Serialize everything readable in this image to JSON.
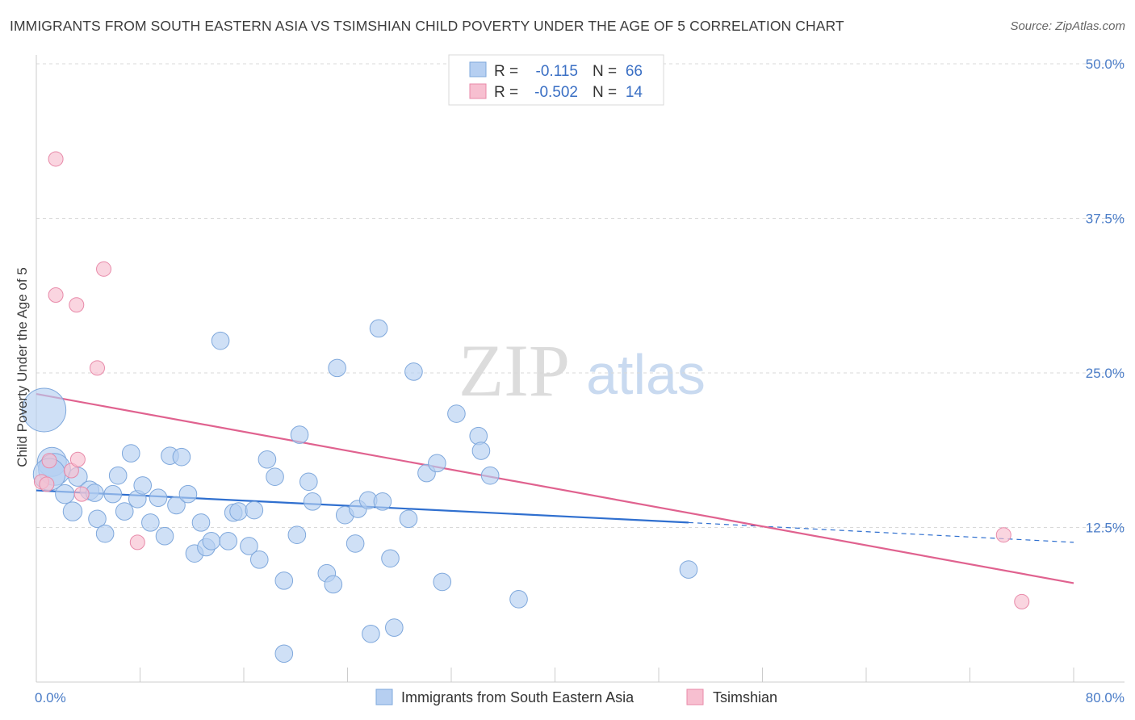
{
  "header": {
    "title": "IMMIGRANTS FROM SOUTH EASTERN ASIA VS TSIMSHIAN CHILD POVERTY UNDER THE AGE OF 5 CORRELATION CHART",
    "source": "Source: ZipAtlas.com"
  },
  "watermark": {
    "zip": "ZIP",
    "atlas": "atlas"
  },
  "colors": {
    "blue_fill": "#b6cff1",
    "blue_stroke": "#7fa8dc",
    "blue_line": "#2f6fcf",
    "pink_fill": "#f7bfd0",
    "pink_stroke": "#e88aa9",
    "pink_line": "#e0628f",
    "tick_text": "#4a7cc7",
    "grid": "#d9d9d9"
  },
  "legend_top": {
    "rows": [
      {
        "r_label": "R =",
        "r_value": "-0.115",
        "n_label": "N =",
        "n_value": "66"
      },
      {
        "r_label": "R =",
        "r_value": "-0.502",
        "n_label": "N =",
        "n_value": "14"
      }
    ]
  },
  "legend_bottom": {
    "items": [
      "Immigrants from South Eastern Asia",
      "Tsimshian"
    ]
  },
  "chart_data": {
    "type": "scatter",
    "title": "IMMIGRANTS FROM SOUTH EASTERN ASIA VS TSIMSHIAN CHILD POVERTY UNDER THE AGE OF 5 CORRELATION CHART",
    "xlabel": "",
    "ylabel": "Child Poverty Under the Age of 5",
    "xlim": [
      0,
      80
    ],
    "ylim": [
      0,
      50
    ],
    "x_tick_labels": [
      {
        "value": 0,
        "label": "0.0%"
      },
      {
        "value": 80,
        "label": "80.0%"
      }
    ],
    "y_ticks": [
      {
        "value": 12.5,
        "label": "12.5%"
      },
      {
        "value": 25,
        "label": "25.0%"
      },
      {
        "value": 37.5,
        "label": "37.5%"
      },
      {
        "value": 50,
        "label": "50.0%"
      }
    ],
    "grid": "horizontal dashed",
    "legend_placement": "top-center",
    "series": [
      {
        "name": "Immigrants from South Eastern Asia",
        "r": -0.115,
        "n": 66,
        "points": [
          [
            0.6,
            22.0,
            3
          ],
          [
            1.2,
            17.8,
            2
          ],
          [
            1.4,
            17.2,
            2.2
          ],
          [
            1.0,
            16.8,
            2.2
          ],
          [
            2.2,
            15.2,
            1.3
          ],
          [
            2.8,
            13.8,
            1.3
          ],
          [
            3.2,
            16.6,
            1.3
          ],
          [
            4.1,
            15.5,
            1.3
          ],
          [
            4.5,
            15.3,
            1.2
          ],
          [
            4.7,
            13.2,
            1.2
          ],
          [
            5.3,
            12.0,
            1.2
          ],
          [
            5.9,
            15.2,
            1.2
          ],
          [
            6.3,
            16.7,
            1.2
          ],
          [
            6.8,
            13.8,
            1.2
          ],
          [
            7.3,
            18.5,
            1.2
          ],
          [
            7.8,
            14.8,
            1.2
          ],
          [
            8.2,
            15.9,
            1.2
          ],
          [
            8.8,
            12.9,
            1.2
          ],
          [
            9.4,
            14.9,
            1.2
          ],
          [
            9.9,
            11.8,
            1.2
          ],
          [
            10.3,
            18.3,
            1.2
          ],
          [
            10.8,
            14.3,
            1.2
          ],
          [
            11.2,
            18.2,
            1.2
          ],
          [
            11.7,
            15.2,
            1.2
          ],
          [
            12.2,
            10.4,
            1.2
          ],
          [
            12.7,
            12.9,
            1.2
          ],
          [
            13.1,
            10.9,
            1.2
          ],
          [
            13.5,
            11.4,
            1.2
          ],
          [
            14.2,
            27.6,
            1.2
          ],
          [
            14.8,
            11.4,
            1.2
          ],
          [
            15.2,
            13.7,
            1.2
          ],
          [
            15.6,
            13.8,
            1.2
          ],
          [
            16.4,
            11.0,
            1.2
          ],
          [
            16.8,
            13.9,
            1.2
          ],
          [
            17.2,
            9.9,
            1.2
          ],
          [
            17.8,
            18.0,
            1.2
          ],
          [
            18.4,
            16.6,
            1.2
          ],
          [
            19.1,
            8.2,
            1.2
          ],
          [
            19.1,
            2.3,
            1.2
          ],
          [
            20.1,
            11.9,
            1.2
          ],
          [
            20.3,
            20.0,
            1.2
          ],
          [
            21.0,
            16.2,
            1.2
          ],
          [
            21.3,
            14.6,
            1.2
          ],
          [
            22.4,
            8.8,
            1.2
          ],
          [
            22.9,
            7.9,
            1.2
          ],
          [
            23.2,
            25.4,
            1.2
          ],
          [
            23.8,
            13.5,
            1.2
          ],
          [
            24.6,
            11.2,
            1.2
          ],
          [
            24.8,
            14.0,
            1.2
          ],
          [
            25.6,
            14.7,
            1.2
          ],
          [
            25.8,
            3.9,
            1.2
          ],
          [
            26.4,
            28.6,
            1.2
          ],
          [
            26.7,
            14.6,
            1.2
          ],
          [
            27.3,
            10.0,
            1.2
          ],
          [
            27.6,
            4.4,
            1.2
          ],
          [
            28.7,
            13.2,
            1.2
          ],
          [
            29.1,
            25.1,
            1.2
          ],
          [
            30.1,
            16.9,
            1.2
          ],
          [
            30.9,
            17.7,
            1.2
          ],
          [
            31.3,
            8.1,
            1.2
          ],
          [
            32.4,
            21.7,
            1.2
          ],
          [
            34.1,
            19.9,
            1.2
          ],
          [
            34.3,
            18.7,
            1.2
          ],
          [
            35.0,
            16.7,
            1.2
          ],
          [
            37.2,
            6.7,
            1.2
          ],
          [
            50.3,
            9.1,
            1.2
          ]
        ],
        "trend": {
          "x": [
            0,
            50.3
          ],
          "y": [
            15.5,
            12.9
          ]
        },
        "trend_extension": {
          "x": [
            50.3,
            80
          ],
          "y": [
            12.9,
            11.3
          ]
        }
      },
      {
        "name": "Tsimshian",
        "r": -0.502,
        "n": 14,
        "points": [
          [
            0.4,
            16.2
          ],
          [
            0.8,
            16.0
          ],
          [
            1.0,
            17.9
          ],
          [
            1.5,
            42.3
          ],
          [
            1.5,
            31.3
          ],
          [
            2.7,
            17.1
          ],
          [
            3.1,
            30.5
          ],
          [
            3.2,
            18.0
          ],
          [
            3.5,
            15.2
          ],
          [
            4.7,
            25.4
          ],
          [
            5.2,
            33.4
          ],
          [
            7.8,
            11.3
          ],
          [
            74.6,
            11.9
          ],
          [
            76.0,
            6.5
          ]
        ],
        "trend": {
          "x": [
            0,
            80
          ],
          "y": [
            23.3,
            8.0
          ]
        }
      }
    ]
  }
}
